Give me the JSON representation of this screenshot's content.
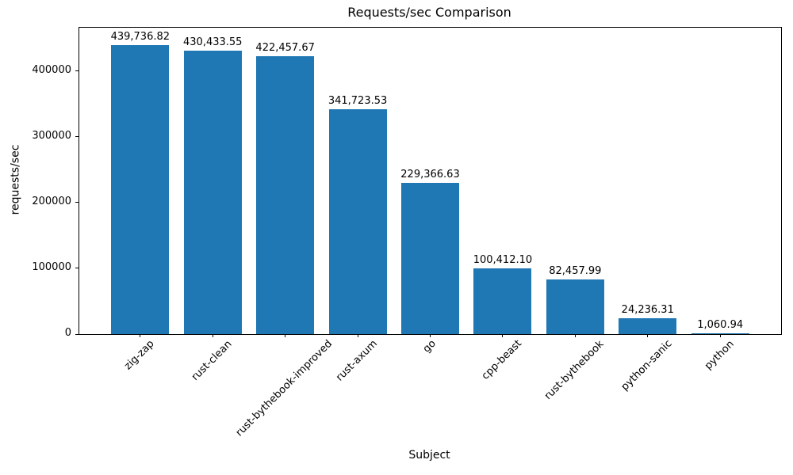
{
  "chart_data": {
    "type": "bar",
    "title": "Requests/sec Comparison",
    "xlabel": "Subject",
    "ylabel": "requests/sec",
    "categories": [
      "zig-zap",
      "rust-clean",
      "rust-bythebook-improved",
      "rust-axum",
      "go",
      "cpp-beast",
      "rust-bythebook",
      "python-sanic",
      "python"
    ],
    "values": [
      439736.82,
      430433.55,
      422457.67,
      341723.53,
      229366.63,
      100412.1,
      82457.99,
      24236.31,
      1060.94
    ],
    "bar_labels": [
      "439,736.82",
      "430,433.55",
      "422,457.67",
      "341,723.53",
      "229,366.63",
      "100,412.10",
      "82,457.99",
      "24,236.31",
      "1,060.94"
    ],
    "yticks": [
      0,
      100000,
      200000,
      300000,
      400000
    ],
    "ytick_labels": [
      "0",
      "100000",
      "200000",
      "300000",
      "400000"
    ],
    "ylim": [
      0,
      465700
    ],
    "x_tick_rotation": 45,
    "grid": false,
    "legend": null,
    "bar_color": "#1f77b4"
  },
  "colors": {
    "bar": "#1f77b4",
    "axis": "#000000",
    "text": "#000000",
    "background": "#ffffff"
  }
}
